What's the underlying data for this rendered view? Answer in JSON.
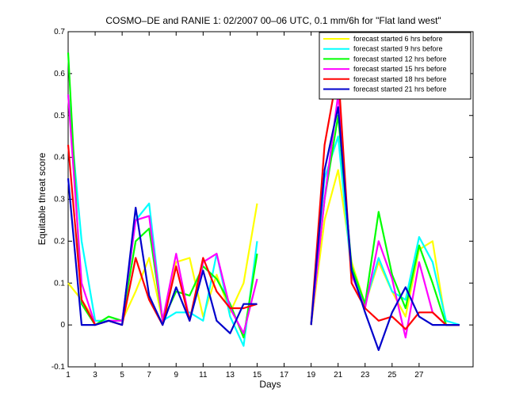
{
  "chart_data": {
    "type": "line",
    "title": "COSMO–DE and RANIE 1: 02/2007 00–06 UTC, 0.1 mm/6h for \"Flat land west\"",
    "xlabel": "Days",
    "ylabel": "Equitable threat score",
    "xlim": [
      1,
      31
    ],
    "ylim": [
      -0.1,
      0.7
    ],
    "xticks": [
      1,
      3,
      5,
      7,
      9,
      11,
      13,
      15,
      17,
      19,
      21,
      23,
      25,
      27
    ],
    "yticks": [
      -0.1,
      0,
      0.1,
      0.2,
      0.3,
      0.4,
      0.5,
      0.6,
      0.7
    ],
    "ytick_labels": [
      "-0.1",
      "0",
      "0.1",
      "0.2",
      "0.3",
      "0.4",
      "0.5",
      "0.6",
      "0.7"
    ],
    "legend_position": "top-right",
    "grid": false,
    "x": [
      1,
      2,
      3,
      4,
      5,
      6,
      7,
      8,
      9,
      10,
      11,
      12,
      13,
      14,
      15,
      16,
      17,
      18,
      19,
      20,
      21,
      22,
      23,
      24,
      25,
      26,
      27,
      28,
      29,
      30
    ],
    "series": [
      {
        "name": "forecast started 6 hrs before",
        "color": "#ffff00",
        "values": [
          0.1,
          0.06,
          0.01,
          0.01,
          0.01,
          0.08,
          0.16,
          0.01,
          0.15,
          0.16,
          0.02,
          0.12,
          0.03,
          0.1,
          0.29,
          null,
          null,
          null,
          0,
          0.25,
          0.37,
          0.15,
          0.05,
          0.15,
          0.08,
          0.02,
          0.18,
          0.2,
          0,
          0
        ]
      },
      {
        "name": "forecast started 9 hrs before",
        "color": "#00ffff",
        "values": [
          0.55,
          0.2,
          0.01,
          0.01,
          0.01,
          0.25,
          0.29,
          0.01,
          0.03,
          0.03,
          0.01,
          0.17,
          0.02,
          -0.05,
          0.2,
          null,
          null,
          null,
          0,
          0.35,
          0.45,
          0.12,
          0.05,
          0.16,
          0.08,
          0.06,
          0.21,
          0.15,
          0.01,
          0
        ]
      },
      {
        "name": "forecast started 12 hrs before",
        "color": "#00ff00",
        "values": [
          0.65,
          0.05,
          0,
          0.02,
          0.01,
          0.2,
          0.23,
          0.01,
          0.08,
          0.07,
          0.14,
          0.11,
          0.05,
          -0.03,
          0.17,
          null,
          null,
          null,
          0,
          0.3,
          0.5,
          0.14,
          0.05,
          0.27,
          0.12,
          0.04,
          0.19,
          0.1,
          0,
          0
        ]
      },
      {
        "name": "forecast started 15 hrs before",
        "color": "#ff00ff",
        "values": [
          0.55,
          0.1,
          0,
          0.01,
          0.01,
          0.25,
          0.26,
          0.01,
          0.17,
          0.01,
          0.15,
          0.17,
          0.04,
          -0.02,
          0.11,
          null,
          null,
          null,
          0,
          0.3,
          0.55,
          0.12,
          0.04,
          0.2,
          0.11,
          -0.03,
          0.15,
          0.03,
          0,
          0
        ]
      },
      {
        "name": "forecast started 18 hrs before",
        "color": "#ff0000",
        "values": [
          0.43,
          0.06,
          0,
          0.01,
          0,
          0.16,
          0.06,
          0,
          0.14,
          0.01,
          0.16,
          0.08,
          0.04,
          0.04,
          0.05,
          null,
          null,
          null,
          0,
          0.43,
          0.61,
          0.1,
          0.04,
          0.01,
          0.02,
          -0.01,
          0.03,
          0.03,
          0,
          0
        ]
      },
      {
        "name": "forecast started 21 hrs before",
        "color": "#0000cc",
        "values": [
          0.35,
          0,
          0,
          0.01,
          0,
          0.28,
          0.07,
          0,
          0.09,
          0.01,
          0.13,
          0.01,
          -0.02,
          0.05,
          0.05,
          null,
          null,
          null,
          0,
          0.37,
          0.52,
          0.13,
          0.03,
          -0.06,
          0.03,
          0.09,
          0.02,
          0,
          0,
          0
        ]
      }
    ]
  }
}
